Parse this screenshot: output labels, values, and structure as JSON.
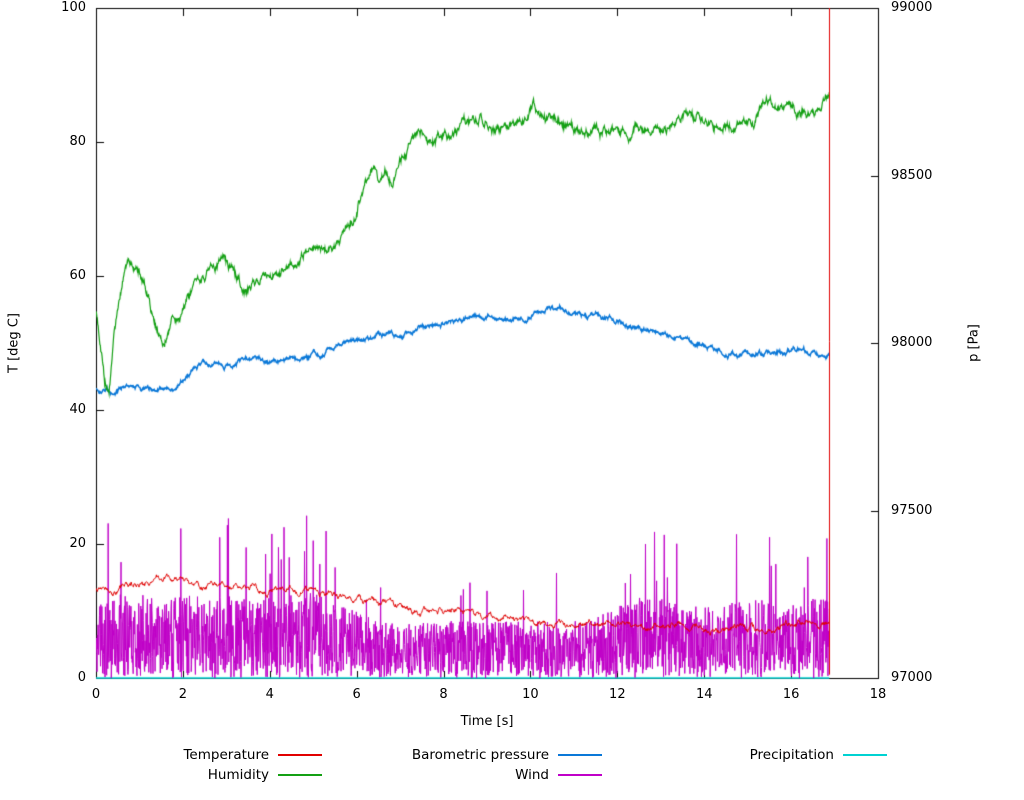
{
  "chart_data": {
    "type": "line",
    "title": "",
    "xlabel": "Time [s]",
    "ylabel_left": "T [deg C]",
    "ylabel_right": "p [Pa]",
    "x_range": [
      0,
      18
    ],
    "y_left_range": [
      0,
      100
    ],
    "y_right_range": [
      97000,
      99000
    ],
    "x_ticks": [
      0,
      2,
      4,
      6,
      8,
      10,
      12,
      14,
      16,
      18
    ],
    "y_left_ticks": [
      0,
      20,
      40,
      60,
      80,
      100
    ],
    "y_right_ticks": [
      97000,
      97500,
      98000,
      98500,
      99000
    ],
    "x_end": 16.88,
    "grid": false,
    "legend_position": "below",
    "legend_rows": [
      [
        "Temperature",
        "Barometric pressure",
        "Precipitation"
      ],
      [
        "Humidity",
        "Wind"
      ]
    ],
    "series": [
      {
        "name": "Temperature",
        "color": "#e10000",
        "axis": "left",
        "style": "noisy-line",
        "noise": 0.3,
        "lw": 1,
        "keypoints": [
          [
            0,
            13
          ],
          [
            0.2,
            13.6
          ],
          [
            0.35,
            13
          ],
          [
            0.6,
            13.5
          ],
          [
            0.8,
            13.8
          ],
          [
            1.0,
            14.1
          ],
          [
            1.2,
            14.4
          ],
          [
            1.5,
            15
          ],
          [
            1.7,
            15
          ],
          [
            1.9,
            14.5
          ],
          [
            2.2,
            14
          ],
          [
            2.5,
            13.8
          ],
          [
            3.0,
            13.3
          ],
          [
            3.5,
            13.2
          ],
          [
            4.0,
            13.2
          ],
          [
            4.5,
            13
          ],
          [
            5.0,
            13
          ],
          [
            5.5,
            12.5
          ],
          [
            6.0,
            12
          ],
          [
            6.5,
            11.3
          ],
          [
            7.0,
            10.8
          ],
          [
            7.5,
            10.3
          ],
          [
            8.0,
            10
          ],
          [
            8.5,
            9.5
          ],
          [
            9.0,
            9.2
          ],
          [
            9.5,
            8.8
          ],
          [
            10.0,
            8.3
          ],
          [
            10.5,
            8
          ],
          [
            11.0,
            8
          ],
          [
            11.5,
            8.2
          ],
          [
            12.0,
            8
          ],
          [
            12.5,
            7.8
          ],
          [
            13.0,
            7.8
          ],
          [
            13.5,
            7.5
          ],
          [
            14.0,
            7.5
          ],
          [
            15.0,
            7.5
          ],
          [
            15.5,
            7.5
          ],
          [
            16.0,
            7.8
          ],
          [
            16.5,
            7.8
          ],
          [
            16.88,
            8
          ]
        ],
        "end_spike": {
          "x": 16.88,
          "from": 0.5,
          "to": 100
        }
      },
      {
        "name": "Humidity",
        "color": "#14a014",
        "axis": "left",
        "style": "noisy-line",
        "noise": 0.5,
        "lw": 1.2,
        "keypoints": [
          [
            0,
            55
          ],
          [
            0.1,
            50
          ],
          [
            0.2,
            44.5
          ],
          [
            0.3,
            43
          ],
          [
            0.42,
            52
          ],
          [
            0.55,
            57
          ],
          [
            0.65,
            61
          ],
          [
            0.75,
            63.5
          ],
          [
            0.9,
            62
          ],
          [
            1.05,
            60
          ],
          [
            1.2,
            57
          ],
          [
            1.35,
            53.5
          ],
          [
            1.55,
            49.5
          ],
          [
            1.7,
            52
          ],
          [
            1.9,
            54
          ],
          [
            2.1,
            56
          ],
          [
            2.4,
            59
          ],
          [
            2.7,
            61
          ],
          [
            2.9,
            62.5
          ],
          [
            3.1,
            61
          ],
          [
            3.3,
            59
          ],
          [
            3.5,
            57.5
          ],
          [
            3.7,
            59
          ],
          [
            3.9,
            60
          ],
          [
            4.1,
            60.5
          ],
          [
            4.3,
            61
          ],
          [
            4.6,
            62.5
          ],
          [
            4.9,
            63.5
          ],
          [
            5.1,
            64.5
          ],
          [
            5.3,
            64
          ],
          [
            5.5,
            64.5
          ],
          [
            5.7,
            66
          ],
          [
            5.9,
            68.5
          ],
          [
            6.05,
            72
          ],
          [
            6.2,
            75.5
          ],
          [
            6.35,
            76
          ],
          [
            6.5,
            74.5
          ],
          [
            6.65,
            75.5
          ],
          [
            6.8,
            74.5
          ],
          [
            7.0,
            78
          ],
          [
            7.2,
            80
          ],
          [
            7.4,
            81.5
          ],
          [
            7.6,
            80.5
          ],
          [
            7.8,
            79.5
          ],
          [
            8.0,
            80.5
          ],
          [
            8.2,
            81.5
          ],
          [
            8.5,
            82.5
          ],
          [
            8.7,
            83.5
          ],
          [
            8.85,
            84.5
          ],
          [
            9.0,
            83
          ],
          [
            9.15,
            82
          ],
          [
            9.3,
            81.5
          ],
          [
            9.5,
            82.5
          ],
          [
            9.7,
            83
          ],
          [
            9.9,
            84
          ],
          [
            10.05,
            85.5
          ],
          [
            10.2,
            84
          ],
          [
            10.35,
            83
          ],
          [
            10.6,
            83.5
          ],
          [
            10.8,
            82.5
          ],
          [
            11.0,
            82
          ],
          [
            11.3,
            82.5
          ],
          [
            11.6,
            82
          ],
          [
            12.0,
            82
          ],
          [
            12.3,
            81.5
          ],
          [
            12.9,
            81.5
          ],
          [
            13.2,
            82
          ],
          [
            13.5,
            83
          ],
          [
            13.8,
            83.5
          ],
          [
            14.1,
            83
          ],
          [
            14.3,
            82.5
          ],
          [
            14.5,
            83
          ],
          [
            14.7,
            82.5
          ],
          [
            15.0,
            82.5
          ],
          [
            15.2,
            84
          ],
          [
            15.4,
            85.5
          ],
          [
            15.6,
            86
          ],
          [
            15.8,
            85.5
          ],
          [
            16.0,
            85
          ],
          [
            16.3,
            85
          ],
          [
            16.5,
            84.5
          ],
          [
            16.7,
            84
          ],
          [
            16.88,
            86
          ]
        ]
      },
      {
        "name": "Barometric pressure",
        "color": "#0a78d8",
        "axis": "right",
        "style": "noisy-line",
        "noise": 5,
        "lw": 1.5,
        "keypoints": [
          [
            0,
            97865
          ],
          [
            0.2,
            97855
          ],
          [
            0.35,
            97850
          ],
          [
            0.5,
            97862
          ],
          [
            0.7,
            97868
          ],
          [
            0.9,
            97865
          ],
          [
            1.1,
            97860
          ],
          [
            1.3,
            97856
          ],
          [
            1.5,
            97865
          ],
          [
            1.7,
            97872
          ],
          [
            1.9,
            97880
          ],
          [
            2.1,
            97900
          ],
          [
            2.3,
            97918
          ],
          [
            2.5,
            97928
          ],
          [
            2.8,
            97932
          ],
          [
            3.1,
            97935
          ],
          [
            3.4,
            97942
          ],
          [
            3.7,
            97948
          ],
          [
            4.0,
            97940
          ],
          [
            4.3,
            97945
          ],
          [
            4.6,
            97955
          ],
          [
            4.9,
            97962
          ],
          [
            5.2,
            97972
          ],
          [
            5.5,
            97984
          ],
          [
            5.8,
            97996
          ],
          [
            6.1,
            98008
          ],
          [
            6.4,
            98017
          ],
          [
            6.7,
            98026
          ],
          [
            7.0,
            98032
          ],
          [
            7.3,
            98040
          ],
          [
            7.6,
            98047
          ],
          [
            7.9,
            98056
          ],
          [
            8.2,
            98065
          ],
          [
            8.45,
            98062
          ],
          [
            8.7,
            98070
          ],
          [
            8.9,
            98066
          ],
          [
            9.2,
            98075
          ],
          [
            9.5,
            98084
          ],
          [
            9.8,
            98090
          ],
          [
            10.1,
            98096
          ],
          [
            10.35,
            98100
          ],
          [
            10.6,
            98096
          ],
          [
            10.9,
            98088
          ],
          [
            11.2,
            98082
          ],
          [
            11.5,
            98076
          ],
          [
            11.8,
            98068
          ],
          [
            12.1,
            98060
          ],
          [
            12.4,
            98052
          ],
          [
            12.7,
            98042
          ],
          [
            13.0,
            98034
          ],
          [
            13.3,
            98020
          ],
          [
            13.6,
            98008
          ],
          [
            13.9,
            97996
          ],
          [
            14.2,
            97987
          ],
          [
            14.5,
            97978
          ],
          [
            14.8,
            97970
          ],
          [
            15.1,
            97964
          ],
          [
            15.35,
            97962
          ],
          [
            15.6,
            97968
          ],
          [
            15.9,
            97974
          ],
          [
            16.1,
            97976
          ],
          [
            16.35,
            97971
          ],
          [
            16.6,
            97965
          ],
          [
            16.88,
            97960
          ]
        ]
      },
      {
        "name": "Wind",
        "color": "#c000c8",
        "axis": "left",
        "style": "noise-band",
        "lw": 1,
        "amplitude_keypoints": [
          [
            0,
            11
          ],
          [
            0.5,
            13
          ],
          [
            1.5,
            12
          ],
          [
            2.5,
            12.5
          ],
          [
            3.5,
            12
          ],
          [
            4.5,
            12.5
          ],
          [
            5.0,
            13
          ],
          [
            5.5,
            11
          ],
          [
            6.0,
            10
          ],
          [
            6.5,
            8.5
          ],
          [
            7.0,
            8
          ],
          [
            8.0,
            8.5
          ],
          [
            9.0,
            8.5
          ],
          [
            10.0,
            8.5
          ],
          [
            11.0,
            8.5
          ],
          [
            11.5,
            9
          ],
          [
            12.0,
            11
          ],
          [
            12.5,
            12
          ],
          [
            13.0,
            12
          ],
          [
            13.5,
            11
          ],
          [
            14.0,
            10.5
          ],
          [
            14.5,
            11
          ],
          [
            15.0,
            12
          ],
          [
            15.5,
            12
          ],
          [
            16.0,
            11.5
          ],
          [
            16.88,
            12
          ]
        ],
        "spikes": [
          [
            3.05,
            23.8
          ],
          [
            3.9,
            18.5
          ],
          [
            4.05,
            21.5
          ],
          [
            4.2,
            19.5
          ],
          [
            4.45,
            18
          ],
          [
            5.0,
            20.5
          ],
          [
            5.15,
            17
          ],
          [
            5.5,
            16.5
          ],
          [
            6.55,
            13.5
          ],
          [
            9.0,
            13
          ],
          [
            12.3,
            15.5
          ],
          [
            12.65,
            20
          ],
          [
            12.9,
            14.5
          ],
          [
            13.15,
            15
          ],
          [
            15.5,
            21
          ],
          [
            15.65,
            17
          ],
          [
            16.3,
            13.5
          ]
        ]
      },
      {
        "name": "Precipitation",
        "color": "#00d2d2",
        "axis": "left",
        "style": "noisy-line",
        "noise": 0,
        "lw": 1.5,
        "keypoints": [
          [
            0,
            0
          ],
          [
            16.88,
            0
          ]
        ]
      }
    ]
  }
}
